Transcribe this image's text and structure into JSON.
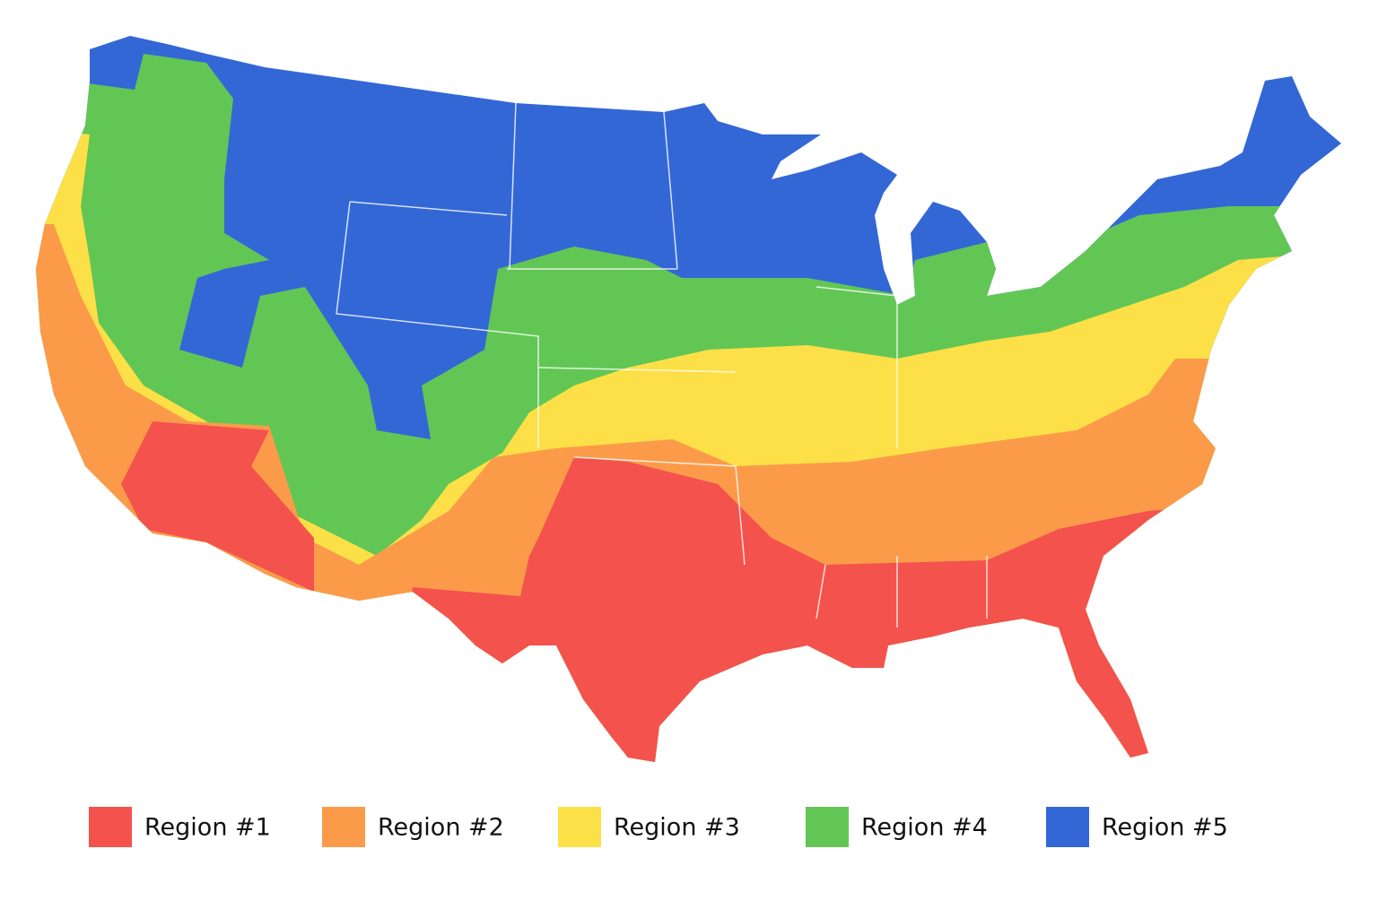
{
  "legend": {
    "items": [
      {
        "label": "Region #1",
        "color": "#f4524d"
      },
      {
        "label": "Region #2",
        "color": "#fb9b4a"
      },
      {
        "label": "Region #3",
        "color": "#fde047"
      },
      {
        "label": "Region #4",
        "color": "#62c655"
      },
      {
        "label": "Region #5",
        "color": "#3367d6"
      }
    ]
  }
}
